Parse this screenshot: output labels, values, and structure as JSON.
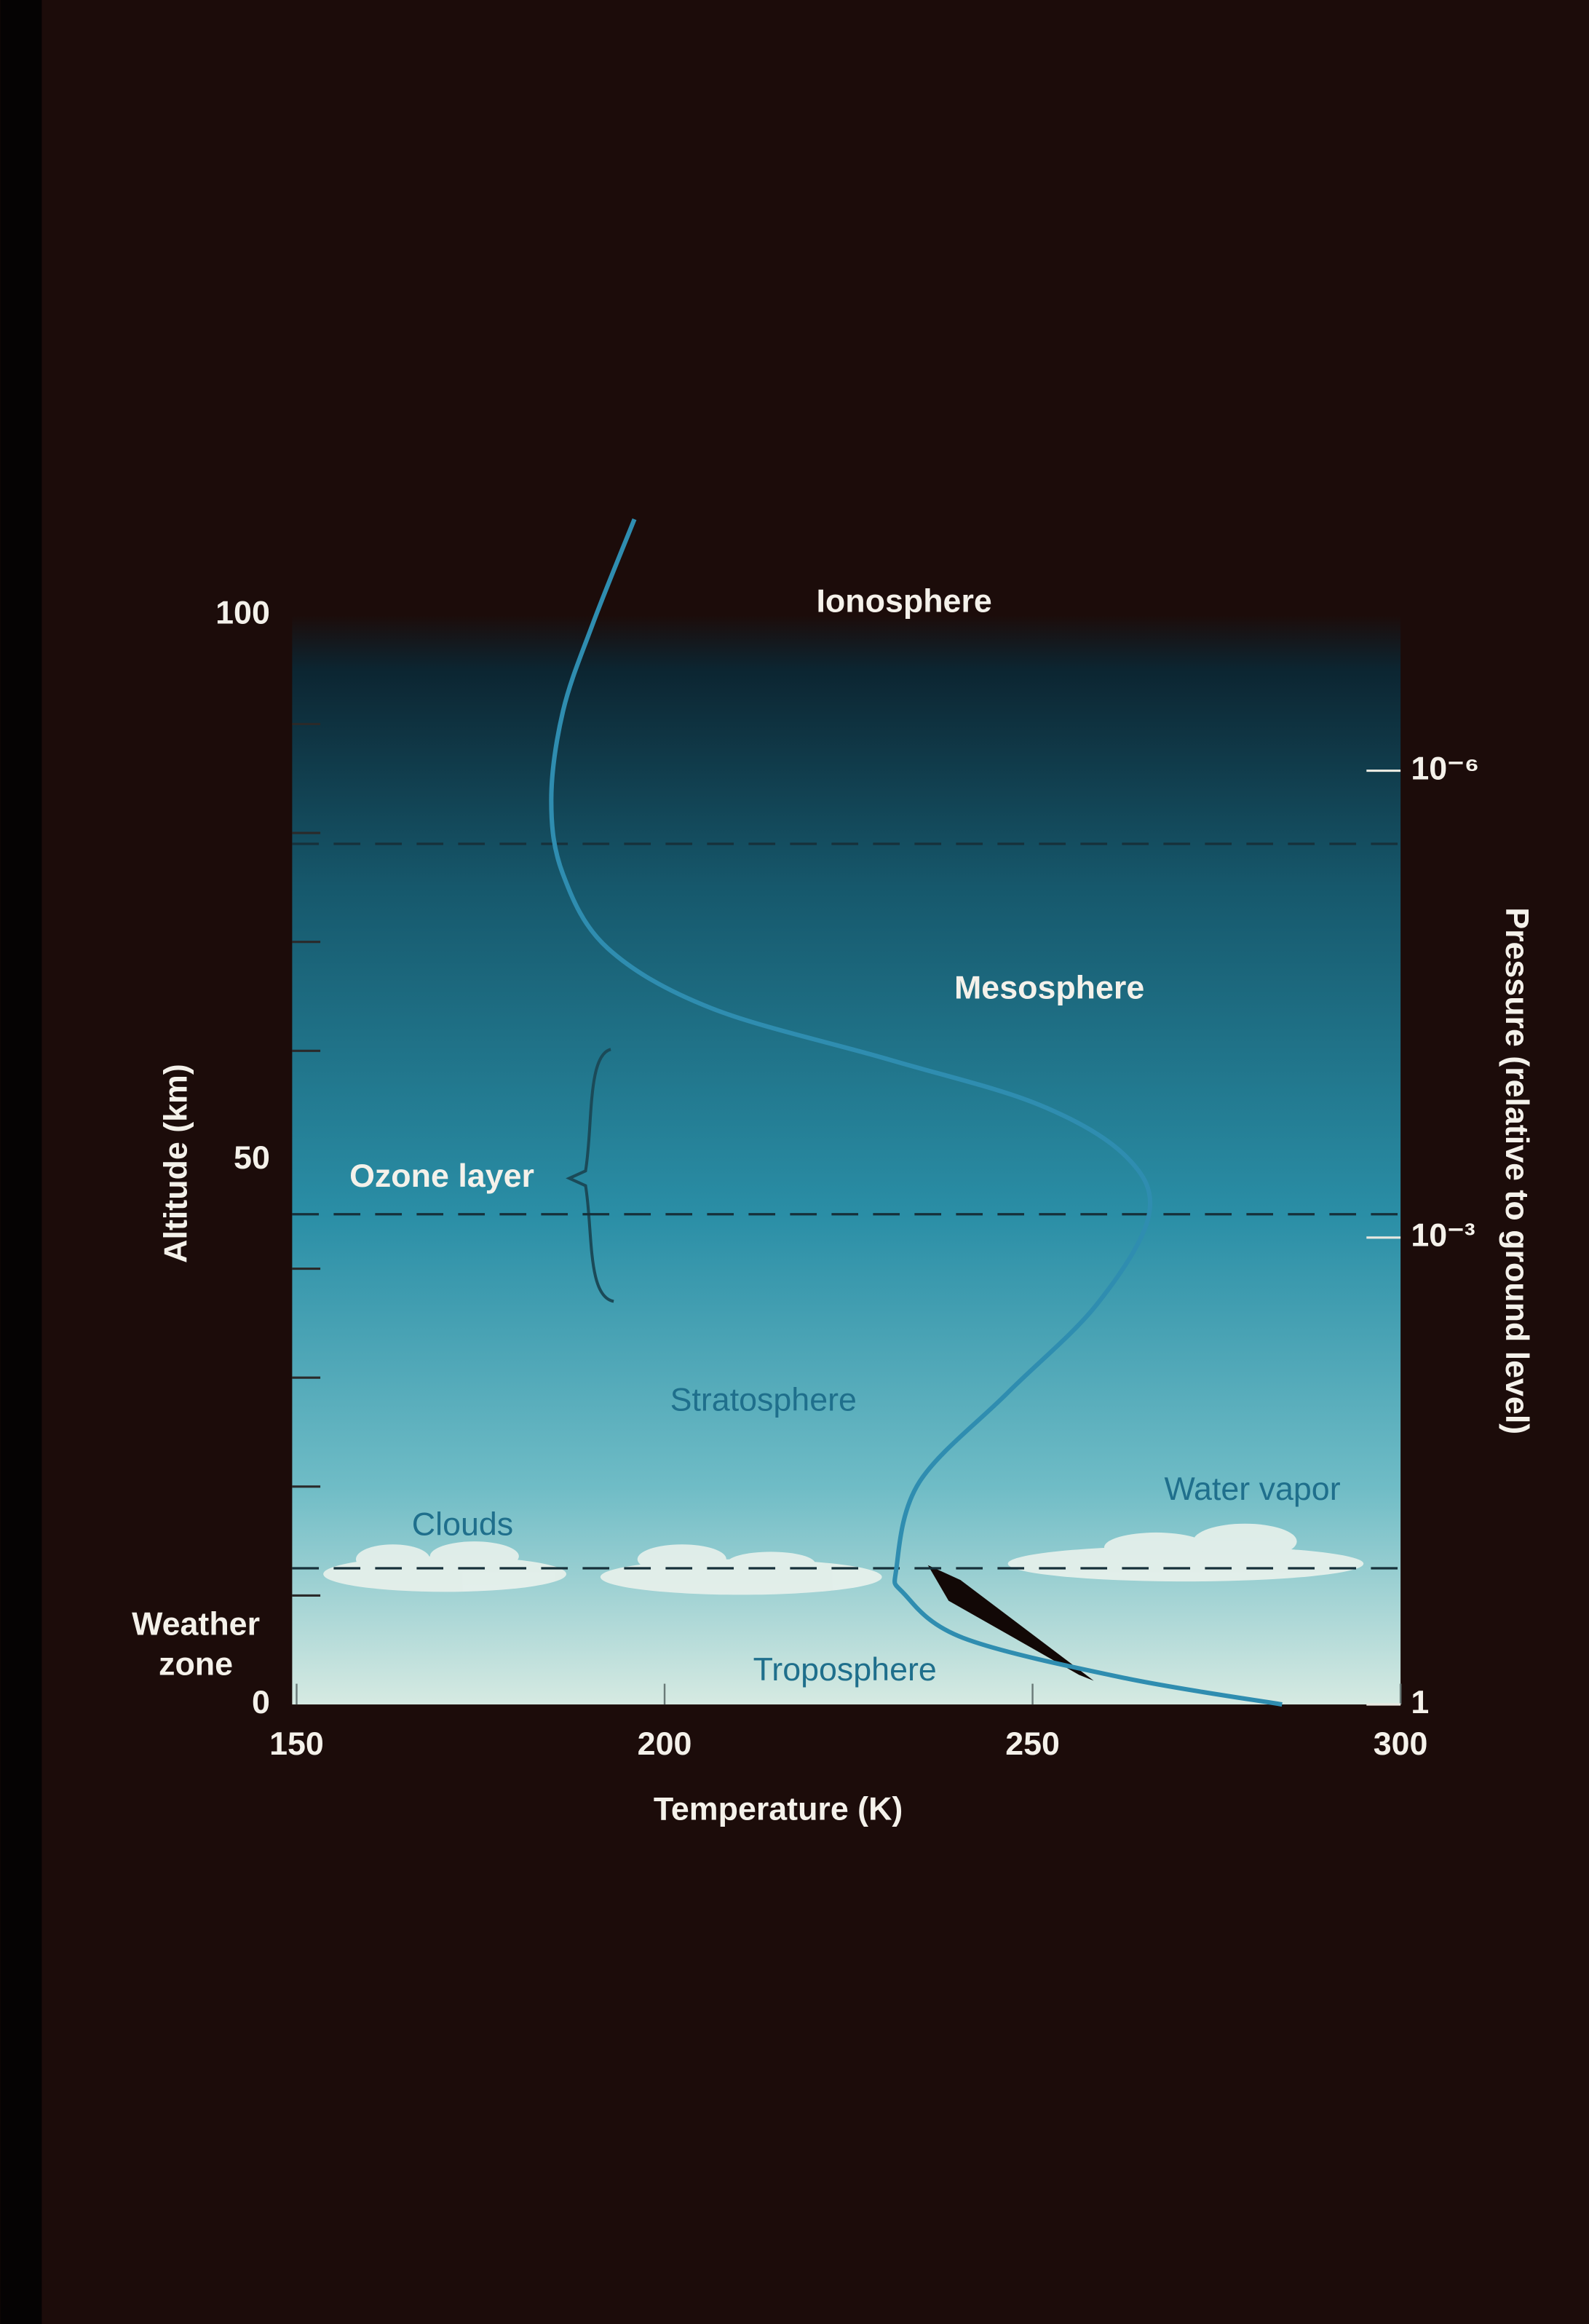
{
  "chart_data": {
    "type": "line",
    "x_label": "Temperature (K)",
    "y_label": "Altitude (km)",
    "y2_label": "Pressure (relative to ground level)",
    "x": [
      283.9,
      262.7,
      240.6,
      232.5,
      231.5,
      234.6,
      246.6,
      258.7,
      265.8,
      262.7,
      250.7,
      230.5,
      206.4,
      192.3,
      186.2,
      184.6,
      186.2,
      190.3,
      195.9
    ],
    "values": [
      0,
      2.4,
      6.1,
      10.2,
      12.5,
      20.4,
      28.6,
      36.7,
      44.9,
      50.3,
      55.1,
      59.2,
      63.9,
      69.4,
      76.2,
      83.0,
      91.2,
      99.3,
      108.8
    ],
    "line_color": "#2f8db0",
    "xlim": [
      150,
      300
    ],
    "xticks": [
      150,
      200,
      250,
      300
    ],
    "ylim": [
      0,
      100
    ],
    "yticks": [
      0,
      50,
      100
    ],
    "yminorticks": [
      10,
      20,
      30,
      40,
      60,
      70,
      80,
      90
    ],
    "y2lim": [
      1,
      1e-07
    ],
    "y2log": true,
    "y2ticks": [
      {
        "value": 1e-06,
        "label": "10⁻⁶"
      },
      {
        "value": 0.001,
        "label": "10⁻³"
      },
      1
    ],
    "dashed_lines": [
      12.5,
      45,
      79
    ],
    "annotations": [
      "Ionosphere",
      "Mesosphere",
      "Ozone layer",
      "Stratosphere",
      "Clouds",
      "Water vapor",
      "Weather zone",
      "Troposphere"
    ]
  }
}
